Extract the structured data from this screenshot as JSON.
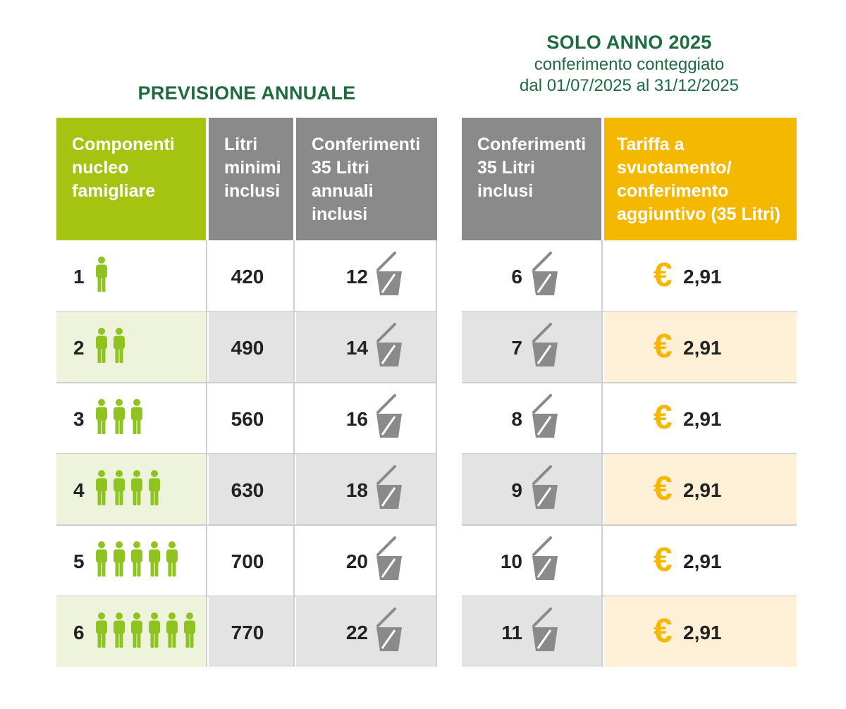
{
  "left_title": "PREVISIONE ANNUALE",
  "right_title": {
    "line1": "SOLO ANNO 2025",
    "line2": "conferimento conteggiato",
    "line3": "dal 01/07/2025 al 31/12/2025"
  },
  "headers": {
    "componenti": [
      "Componenti",
      "nucleo",
      "famigliare"
    ],
    "litri": [
      "Litri",
      "minimi",
      "inclusi"
    ],
    "conferimenti": [
      "Conferimenti",
      "35 Litri",
      "annuali",
      "inclusi"
    ],
    "conferimenti_2025": [
      "Conferimenti",
      "35 Litri",
      "inclusi"
    ],
    "tariffa": [
      "Tariffa a",
      "svuotamento/",
      "conferimento",
      "aggiuntivo (35 Litri)"
    ]
  },
  "rows": [
    {
      "componenti": "1",
      "people": 1,
      "litri": "420",
      "conferimenti": "12",
      "conferimenti_2025": "6",
      "euro": "€",
      "tariffa": "2,91"
    },
    {
      "componenti": "2",
      "people": 2,
      "litri": "490",
      "conferimenti": "14",
      "conferimenti_2025": "7",
      "euro": "€",
      "tariffa": "2,91"
    },
    {
      "componenti": "3",
      "people": 3,
      "litri": "560",
      "conferimenti": "16",
      "conferimenti_2025": "8",
      "euro": "€",
      "tariffa": "2,91"
    },
    {
      "componenti": "4",
      "people": 4,
      "litri": "630",
      "conferimenti": "18",
      "conferimenti_2025": "9",
      "euro": "€",
      "tariffa": "2,91"
    },
    {
      "componenti": "5",
      "people": 5,
      "litri": "700",
      "conferimenti": "20",
      "conferimenti_2025": "10",
      "euro": "€",
      "tariffa": "2,91"
    },
    {
      "componenti": "6",
      "people": 6,
      "litri": "770",
      "conferimenti": "22",
      "conferimenti_2025": "11",
      "euro": "€",
      "tariffa": "2,91"
    }
  ],
  "icons": {
    "person": "person-icon",
    "bin": "bin-icon",
    "euro": "euro-icon"
  },
  "colors": {
    "title_green": "#1f6b3f",
    "header_green": "#a5c412",
    "header_gray": "#8a8a8a",
    "header_orange": "#f5b800",
    "person_green": "#8fc31f",
    "bin_gray": "#8a8a8a"
  }
}
